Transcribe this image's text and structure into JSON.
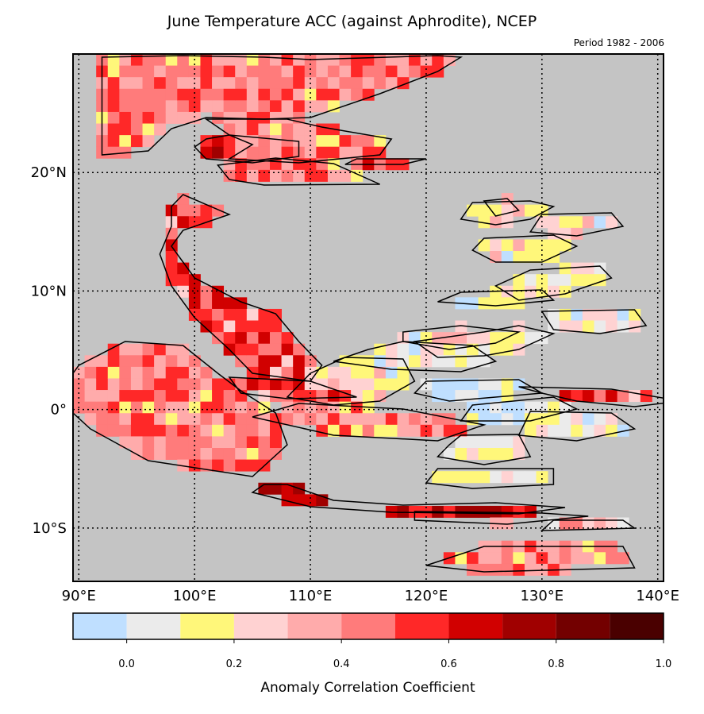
{
  "title": "June Temperature ACC (against Aphrodite), NCEP",
  "period": "Period 1982 - 2006",
  "map": {
    "lon_range": [
      89.5,
      140.5
    ],
    "lat_range": [
      -14.5,
      30.0
    ],
    "lon_ticks": [
      {
        "value": 90,
        "label": "90°E"
      },
      {
        "value": 100,
        "label": "100°E"
      },
      {
        "value": 110,
        "label": "110°E"
      },
      {
        "value": 120,
        "label": "120°E"
      },
      {
        "value": 130,
        "label": "130°E"
      },
      {
        "value": 140,
        "label": "140°E"
      }
    ],
    "lat_ticks": [
      {
        "value": 20,
        "label": "20°N"
      },
      {
        "value": 10,
        "label": "10°N"
      },
      {
        "value": 0,
        "label": "0°"
      },
      {
        "value": -10,
        "label": "10°S"
      }
    ],
    "grid": "dotted",
    "background_color": "#c4c4c4"
  },
  "colorbar": {
    "label": "Anomaly Correlation Coefficient",
    "tick_labels": [
      {
        "value": 0.0,
        "label": "0.0"
      },
      {
        "value": 0.2,
        "label": "0.2"
      },
      {
        "value": 0.4,
        "label": "0.4"
      },
      {
        "value": 0.6,
        "label": "0.6"
      },
      {
        "value": 0.8,
        "label": "0.8"
      },
      {
        "value": 1.0,
        "label": "1.0"
      }
    ],
    "bins": [
      {
        "from": -0.1,
        "to": 0.0,
        "color": "#bfdfff"
      },
      {
        "from": 0.0,
        "to": 0.1,
        "color": "#ebebeb"
      },
      {
        "from": 0.1,
        "to": 0.2,
        "color": "#fff77a"
      },
      {
        "from": 0.2,
        "to": 0.3,
        "color": "#ffd2d2"
      },
      {
        "from": 0.3,
        "to": 0.4,
        "color": "#ffabab"
      },
      {
        "from": 0.4,
        "to": 0.5,
        "color": "#ff7b7b"
      },
      {
        "from": 0.5,
        "to": 0.6,
        "color": "#ff2828"
      },
      {
        "from": 0.6,
        "to": 0.7,
        "color": "#d10000"
      },
      {
        "from": 0.7,
        "to": 0.8,
        "color": "#a00000"
      },
      {
        "from": 0.8,
        "to": 0.9,
        "color": "#730000"
      },
      {
        "from": 0.9,
        "to": 1.0,
        "color": "#4a0000"
      }
    ]
  }
}
